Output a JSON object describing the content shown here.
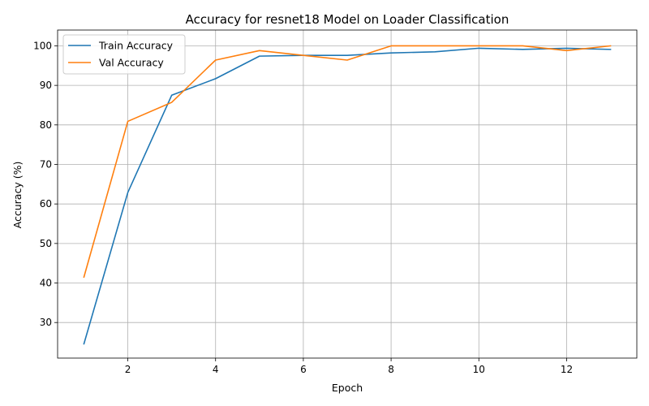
{
  "chart_data": {
    "type": "line",
    "title": "Accuracy for resnet18 Model on Loader Classification",
    "xlabel": "Epoch",
    "ylabel": "Accuracy (%)",
    "xlim": [
      0.4,
      13.6
    ],
    "ylim": [
      21,
      104
    ],
    "x": [
      1,
      2,
      3,
      4,
      5,
      6,
      7,
      8,
      9,
      10,
      11,
      12,
      13
    ],
    "xticks": [
      2,
      4,
      6,
      8,
      10,
      12
    ],
    "yticks": [
      30,
      40,
      50,
      60,
      70,
      80,
      90,
      100
    ],
    "grid": true,
    "legend_position": "top-left",
    "series": [
      {
        "name": "Train Accuracy",
        "color": "#1f77b4",
        "values": [
          24.6,
          62.9,
          87.5,
          91.7,
          97.4,
          97.6,
          97.6,
          98.2,
          98.5,
          99.4,
          99.1,
          99.4,
          99.1
        ]
      },
      {
        "name": "Val Accuracy",
        "color": "#ff7f0e",
        "values": [
          41.5,
          80.9,
          85.7,
          96.4,
          98.8,
          97.6,
          96.4,
          100.0,
          100.0,
          100.0,
          100.0,
          98.8,
          100.0
        ]
      }
    ]
  }
}
